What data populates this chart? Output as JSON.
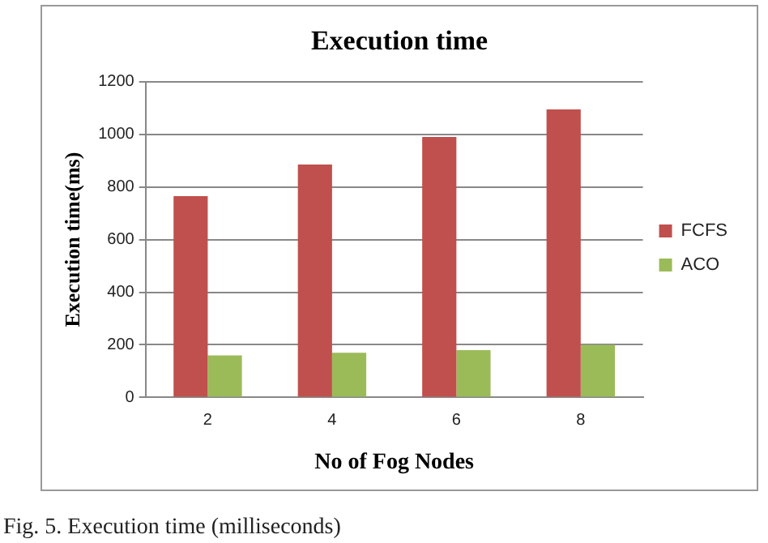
{
  "chart_data": {
    "type": "bar",
    "title": "Execution time",
    "xlabel": "No of Fog Nodes",
    "ylabel": "Execution time(ms)",
    "categories": [
      "2",
      "4",
      "6",
      "8"
    ],
    "series": [
      {
        "name": "FCFS",
        "color": "#c0504d",
        "values": [
          765,
          885,
          990,
          1095
        ]
      },
      {
        "name": "ACO",
        "color": "#9bbb59",
        "values": [
          160,
          170,
          180,
          200
        ]
      }
    ],
    "ylim": [
      0,
      1200
    ],
    "yticks": [
      0,
      200,
      400,
      600,
      800,
      1000,
      1200
    ],
    "grid": "y",
    "legend": "right",
    "annotations": [
      "Fig. 5. Execution time (milliseconds)"
    ]
  }
}
